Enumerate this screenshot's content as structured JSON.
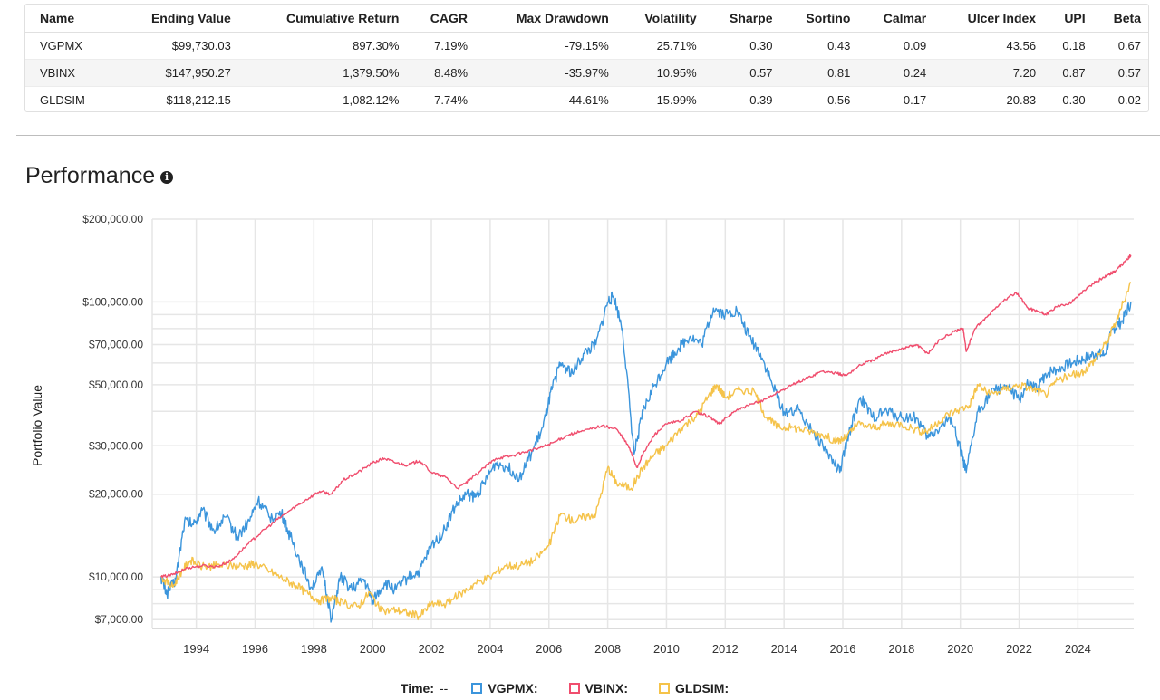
{
  "table": {
    "headers": [
      "Name",
      "Ending Value",
      "Cumulative Return",
      "CAGR",
      "Max Drawdown",
      "Volatility",
      "Sharpe",
      "Sortino",
      "Calmar",
      "Ulcer Index",
      "UPI",
      "Beta"
    ],
    "rows": [
      [
        "VGPMX",
        "$99,730.03",
        "897.30%",
        "7.19%",
        "-79.15%",
        "25.71%",
        "0.30",
        "0.43",
        "0.09",
        "43.56",
        "0.18",
        "0.67"
      ],
      [
        "VBINX",
        "$147,950.27",
        "1,379.50%",
        "8.48%",
        "-35.97%",
        "10.95%",
        "0.57",
        "0.81",
        "0.24",
        "7.20",
        "0.87",
        "0.57"
      ],
      [
        "GLDSIM",
        "$118,212.15",
        "1,082.12%",
        "7.74%",
        "-44.61%",
        "15.99%",
        "0.39",
        "0.56",
        "0.17",
        "20.83",
        "0.30",
        "0.02"
      ]
    ]
  },
  "performance": {
    "title": "Performance",
    "info_icon": "info-icon"
  },
  "legend": {
    "time_label": "Time:",
    "time_value": "--"
  },
  "chart_data": {
    "type": "line",
    "title": "",
    "xlabel": "",
    "ylabel": "Portfolio Value",
    "y_scale": "log",
    "ylim": [
      6500,
      200000
    ],
    "xlim": [
      1992.5,
      2025.9
    ],
    "y_ticks": [
      7000,
      10000,
      20000,
      30000,
      50000,
      70000,
      100000,
      200000
    ],
    "y_tick_labels": [
      "$7,000.00",
      "$10,000.00",
      "$20,000.00",
      "$30,000.00",
      "$50,000.00",
      "$70,000.00",
      "$100,000.00",
      "$200,000.00"
    ],
    "y_gridlines": [
      7000,
      8000,
      9000,
      10000,
      20000,
      30000,
      40000,
      50000,
      60000,
      70000,
      80000,
      90000,
      100000,
      200000
    ],
    "x_ticks": [
      1994,
      1996,
      1998,
      2000,
      2002,
      2004,
      2006,
      2008,
      2010,
      2012,
      2014,
      2016,
      2018,
      2020,
      2022,
      2024
    ],
    "grid": true,
    "legend_position": "bottom",
    "series": [
      {
        "name": "VGPMX:",
        "color": "#3b95dc",
        "x": [
          1992.8,
          1993.0,
          1993.3,
          1993.6,
          1993.9,
          1994.2,
          1994.6,
          1995.0,
          1995.4,
          1995.8,
          1996.1,
          1996.5,
          1996.9,
          1997.2,
          1997.6,
          1997.9,
          1998.3,
          1998.6,
          1998.9,
          1999.3,
          1999.7,
          2000.0,
          2000.4,
          2000.8,
          2001.2,
          2001.6,
          2002.0,
          2002.4,
          2002.8,
          2003.2,
          2003.5,
          2003.8,
          2004.2,
          2004.6,
          2005.0,
          2005.4,
          2005.8,
          2006.1,
          2006.4,
          2006.8,
          2007.2,
          2007.6,
          2008.0,
          2008.2,
          2008.5,
          2008.9,
          2009.2,
          2009.6,
          2010.0,
          2010.4,
          2010.8,
          2011.2,
          2011.6,
          2012.0,
          2012.4,
          2012.8,
          2013.2,
          2013.6,
          2014.0,
          2014.5,
          2015.0,
          2015.5,
          2015.9,
          2016.2,
          2016.6,
          2017.0,
          2017.5,
          2018.0,
          2018.5,
          2018.9,
          2019.3,
          2019.7,
          2020.0,
          2020.2,
          2020.6,
          2021.0,
          2021.5,
          2022.0,
          2022.3,
          2022.6,
          2022.9,
          2023.3,
          2023.8,
          2024.2,
          2024.6,
          2024.9,
          2025.2,
          2025.5,
          2025.8
        ],
        "values": [
          10000,
          8700,
          9800,
          16000,
          15500,
          17500,
          14800,
          16500,
          14000,
          16000,
          19000,
          16500,
          17000,
          14000,
          11000,
          9200,
          10500,
          7000,
          10000,
          9000,
          9800,
          8200,
          9500,
          9000,
          10000,
          10500,
          13000,
          14500,
          18000,
          20000,
          19500,
          22000,
          26000,
          25000,
          23000,
          28000,
          35000,
          48000,
          60000,
          55000,
          65000,
          70000,
          100000,
          105000,
          80000,
          28000,
          40000,
          50000,
          60000,
          68000,
          75000,
          70000,
          95000,
          90000,
          93000,
          75000,
          65000,
          50000,
          40000,
          40500,
          34000,
          28000,
          24000,
          33000,
          45000,
          38000,
          40000,
          38000,
          38000,
          32000,
          35000,
          38000,
          29000,
          24000,
          40000,
          46000,
          50000,
          44000,
          50000,
          48000,
          55000,
          57000,
          60000,
          62000,
          65000,
          64000,
          80000,
          85000,
          99700
        ]
      },
      {
        "name": "VBINX:",
        "color": "#f04e6e",
        "x": [
          1992.8,
          1993.2,
          1993.7,
          1994.2,
          1994.7,
          1995.2,
          1995.7,
          1996.2,
          1996.7,
          1997.2,
          1997.7,
          1998.2,
          1998.6,
          1999.0,
          1999.5,
          2000.0,
          2000.4,
          2000.8,
          2001.2,
          2001.6,
          2002.0,
          2002.5,
          2002.9,
          2003.3,
          2003.8,
          2004.2,
          2004.7,
          2005.2,
          2005.7,
          2006.2,
          2006.7,
          2007.2,
          2007.8,
          2008.3,
          2008.7,
          2009.0,
          2009.2,
          2009.6,
          2010.0,
          2010.5,
          2011.0,
          2011.5,
          2011.8,
          2012.3,
          2012.8,
          2013.3,
          2013.8,
          2014.3,
          2014.8,
          2015.3,
          2015.8,
          2016.1,
          2016.6,
          2017.1,
          2017.6,
          2018.1,
          2018.5,
          2018.9,
          2019.3,
          2019.8,
          2020.1,
          2020.2,
          2020.5,
          2020.9,
          2021.4,
          2021.9,
          2022.3,
          2022.7,
          2022.9,
          2023.3,
          2023.8,
          2024.2,
          2024.6,
          2025.0,
          2025.3,
          2025.6,
          2025.8
        ],
        "values": [
          10000,
          10200,
          10800,
          11000,
          10900,
          11500,
          13000,
          14500,
          16000,
          17500,
          19000,
          20500,
          20000,
          22500,
          24000,
          26000,
          27000,
          26000,
          25500,
          26500,
          24000,
          23000,
          21000,
          22500,
          25000,
          27000,
          27500,
          28500,
          29500,
          31000,
          33000,
          34000,
          35500,
          34500,
          30000,
          25000,
          28000,
          33000,
          36000,
          37000,
          40000,
          38000,
          36000,
          40000,
          42000,
          44000,
          47000,
          50000,
          53000,
          56000,
          55000,
          54000,
          59000,
          62000,
          66000,
          68000,
          70000,
          65000,
          73000,
          78000,
          80000,
          66000,
          80000,
          88000,
          100000,
          108000,
          95000,
          92000,
          90000,
          96000,
          100000,
          110000,
          118000,
          125000,
          130000,
          140000,
          148000
        ]
      },
      {
        "name": "GLDSIM:",
        "color": "#f5c34a",
        "x": [
          1992.8,
          1993.2,
          1993.5,
          1993.8,
          1994.2,
          1994.7,
          1995.2,
          1995.7,
          1996.0,
          1996.5,
          1997.0,
          1997.4,
          1997.8,
          1998.2,
          1998.6,
          1999.0,
          1999.5,
          1999.9,
          2000.3,
          2000.8,
          2001.2,
          2001.6,
          2002.0,
          2002.5,
          2003.0,
          2003.5,
          2004.0,
          2004.5,
          2005.0,
          2005.5,
          2006.0,
          2006.4,
          2006.8,
          2007.2,
          2007.6,
          2008.0,
          2008.3,
          2008.8,
          2009.2,
          2009.6,
          2010.0,
          2010.5,
          2011.0,
          2011.4,
          2011.7,
          2012.0,
          2012.5,
          2013.0,
          2013.4,
          2013.8,
          2014.3,
          2014.8,
          2015.3,
          2015.8,
          2016.1,
          2016.5,
          2017.0,
          2017.5,
          2018.0,
          2018.6,
          2018.9,
          2019.4,
          2019.8,
          2020.3,
          2020.6,
          2021.0,
          2021.5,
          2022.0,
          2022.5,
          2022.9,
          2023.3,
          2023.8,
          2024.2,
          2024.6,
          2025.0,
          2025.4,
          2025.8
        ],
        "values": [
          10000,
          9200,
          10500,
          11500,
          10900,
          11000,
          11000,
          11000,
          11200,
          10500,
          9800,
          9300,
          8700,
          8200,
          8400,
          8000,
          7800,
          8800,
          7500,
          7600,
          7400,
          7200,
          8000,
          8000,
          8700,
          9500,
          10000,
          11000,
          11000,
          11500,
          13000,
          17000,
          16000,
          16500,
          17000,
          25000,
          22000,
          21000,
          25000,
          28000,
          30000,
          35000,
          38000,
          45000,
          50000,
          45000,
          48000,
          47000,
          38000,
          35000,
          35000,
          34000,
          33000,
          31000,
          32000,
          36000,
          35000,
          36000,
          36000,
          34000,
          34000,
          38000,
          40000,
          42000,
          50000,
          46000,
          48000,
          50000,
          48000,
          46000,
          52000,
          54000,
          56000,
          62000,
          72000,
          90000,
          118000
        ]
      }
    ]
  }
}
